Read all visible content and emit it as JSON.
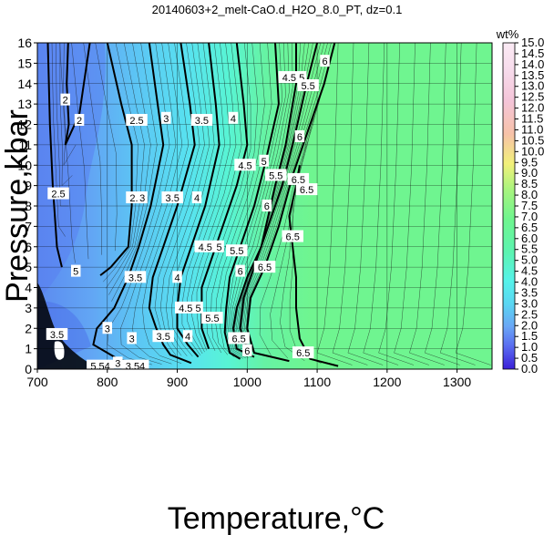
{
  "chart_data": {
    "type": "heatmap",
    "title": "20140603+2_melt-CaO.d_H2O_8.0_PT, dz=0.1",
    "xlabel": "Temperature,°C",
    "ylabel": "Pressure,kbar",
    "xlim": [
      700,
      1350
    ],
    "ylim": [
      0,
      16
    ],
    "x_ticks": [
      "700",
      "800",
      "900",
      "1000",
      "1100",
      "1200",
      "1300"
    ],
    "y_ticks": [
      "0",
      "1",
      "2",
      "3",
      "4",
      "5",
      "6",
      "7",
      "8",
      "9",
      "10",
      "11",
      "12",
      "13",
      "14",
      "15",
      "16"
    ],
    "grid": true,
    "colorbar": {
      "unit": "wt%",
      "range": [
        0,
        15
      ],
      "ticks": [
        "0.0",
        "0.5",
        "1.0",
        "1.5",
        "2.0",
        "2.5",
        "3.0",
        "3.5",
        "4.0",
        "4.5",
        "5.0",
        "5.5",
        "6.0",
        "6.5",
        "7.0",
        "7.5",
        "8.0",
        "8.5",
        "9.0",
        "9.5",
        "10.0",
        "10.5",
        "11.0",
        "11.5",
        "12.0",
        "12.5",
        "13.0",
        "13.5",
        "14.0",
        "14.5",
        "15.0"
      ]
    },
    "contour_labels": [
      {
        "text": "2",
        "x": 740,
        "y": 13.2
      },
      {
        "text": "2",
        "x": 760,
        "y": 12.2
      },
      {
        "text": "2.5",
        "x": 730,
        "y": 8.6
      },
      {
        "text": "2.5",
        "x": 842,
        "y": 12.2
      },
      {
        "text": "2.5",
        "x": 842,
        "y": 8.4
      },
      {
        "text": "3",
        "x": 884,
        "y": 12.3
      },
      {
        "text": "3",
        "x": 850,
        "y": 8.4
      },
      {
        "text": "3",
        "x": 835,
        "y": 1.5
      },
      {
        "text": "3",
        "x": 800,
        "y": 2.0
      },
      {
        "text": "3",
        "x": 815,
        "y": 0.3
      },
      {
        "text": "3.5",
        "x": 935,
        "y": 12.2
      },
      {
        "text": "3.5",
        "x": 893,
        "y": 8.4
      },
      {
        "text": "3.5",
        "x": 840,
        "y": 4.5
      },
      {
        "text": "3.5",
        "x": 880,
        "y": 1.6
      },
      {
        "text": "3.5",
        "x": 728,
        "y": 1.7
      },
      {
        "text": "4",
        "x": 980,
        "y": 12.3
      },
      {
        "text": "4",
        "x": 928,
        "y": 8.4
      },
      {
        "text": "4",
        "x": 900,
        "y": 4.5
      },
      {
        "text": "4",
        "x": 915,
        "y": 1.6
      },
      {
        "text": "4.5",
        "x": 1060,
        "y": 14.3
      },
      {
        "text": "4.5",
        "x": 997,
        "y": 10.0
      },
      {
        "text": "4.5",
        "x": 940,
        "y": 6.0
      },
      {
        "text": "4.5",
        "x": 912,
        "y": 3.0
      },
      {
        "text": "5",
        "x": 1078,
        "y": 14.3
      },
      {
        "text": "5",
        "x": 1024,
        "y": 10.2
      },
      {
        "text": "5",
        "x": 960,
        "y": 6.0
      },
      {
        "text": "5",
        "x": 930,
        "y": 3.0
      },
      {
        "text": "5",
        "x": 755,
        "y": 4.8
      },
      {
        "text": "5.5",
        "x": 1087,
        "y": 13.9
      },
      {
        "text": "5.5",
        "x": 1041,
        "y": 9.5
      },
      {
        "text": "5.5",
        "x": 985,
        "y": 5.8
      },
      {
        "text": "5.5",
        "x": 950,
        "y": 2.5
      },
      {
        "text": "6",
        "x": 1111,
        "y": 15.1
      },
      {
        "text": "6",
        "x": 1075,
        "y": 11.4
      },
      {
        "text": "6",
        "x": 1028,
        "y": 8.0
      },
      {
        "text": "6",
        "x": 990,
        "y": 4.8
      },
      {
        "text": "6",
        "x": 1000,
        "y": 0.9
      },
      {
        "text": "6.5",
        "x": 1085,
        "y": 8.8
      },
      {
        "text": "6.5",
        "x": 1025,
        "y": 5.0
      },
      {
        "text": "6.5",
        "x": 1065,
        "y": 6.5
      },
      {
        "text": "6.5",
        "x": 988,
        "y": 1.5
      },
      {
        "text": "6.5",
        "x": 1080,
        "y": 0.8
      },
      {
        "text": "6.5",
        "x": 1073,
        "y": 9.3
      },
      {
        "text": "5.54",
        "x": 790,
        "y": 0.15
      },
      {
        "text": "3.54",
        "x": 840,
        "y": 0.15
      }
    ]
  }
}
